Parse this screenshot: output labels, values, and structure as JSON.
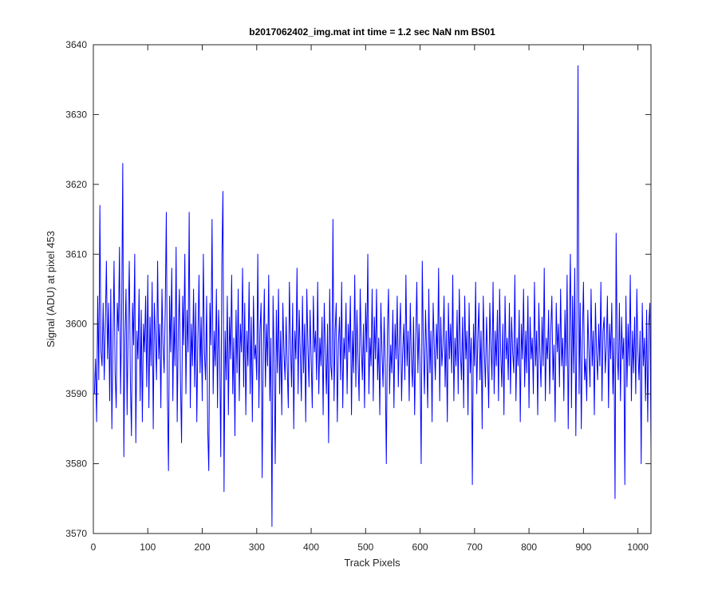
{
  "chart_data": {
    "type": "line",
    "title": "b2017062402_img.mat int time = 1.2 sec  NaN nm BS01",
    "x_label": "Track Pixels",
    "y_label": "Signal (ADU) at pixel 453",
    "color": "#0000ff",
    "xlim": [
      0,
      1024
    ],
    "ylim": [
      3570,
      3640
    ],
    "xticks": [
      0,
      100,
      200,
      300,
      400,
      500,
      600,
      700,
      800,
      900,
      1000
    ],
    "yticks": [
      3570,
      3580,
      3590,
      3600,
      3610,
      3620,
      3630,
      3640
    ],
    "grid": false,
    "x": [
      2,
      4,
      6,
      8,
      10,
      12,
      14,
      16,
      18,
      20,
      22,
      24,
      26,
      28,
      30,
      32,
      34,
      36,
      38,
      40,
      42,
      44,
      46,
      48,
      50,
      52,
      54,
      56,
      58,
      60,
      62,
      64,
      66,
      68,
      70,
      72,
      74,
      76,
      78,
      80,
      82,
      84,
      86,
      88,
      90,
      92,
      94,
      96,
      98,
      100,
      102,
      104,
      106,
      108,
      110,
      112,
      114,
      116,
      118,
      120,
      122,
      124,
      126,
      128,
      130,
      132,
      134,
      136,
      138,
      140,
      142,
      144,
      146,
      148,
      150,
      152,
      154,
      156,
      158,
      160,
      162,
      164,
      166,
      168,
      170,
      172,
      174,
      176,
      178,
      180,
      182,
      184,
      186,
      188,
      190,
      192,
      194,
      196,
      198,
      200,
      202,
      204,
      206,
      208,
      210,
      212,
      214,
      216,
      218,
      220,
      222,
      224,
      226,
      228,
      230,
      232,
      234,
      236,
      238,
      240,
      242,
      244,
      246,
      248,
      250,
      252,
      254,
      256,
      258,
      260,
      262,
      264,
      266,
      268,
      270,
      272,
      274,
      276,
      278,
      280,
      282,
      284,
      286,
      288,
      290,
      292,
      294,
      296,
      298,
      300,
      302,
      304,
      306,
      308,
      310,
      312,
      314,
      316,
      318,
      320,
      322,
      324,
      326,
      328,
      330,
      332,
      334,
      336,
      338,
      340,
      342,
      344,
      346,
      348,
      350,
      352,
      354,
      356,
      358,
      360,
      362,
      364,
      366,
      368,
      370,
      372,
      374,
      376,
      378,
      380,
      382,
      384,
      386,
      388,
      390,
      392,
      394,
      396,
      398,
      400,
      402,
      404,
      406,
      408,
      410,
      412,
      414,
      416,
      418,
      420,
      422,
      424,
      426,
      428,
      430,
      432,
      434,
      436,
      438,
      440,
      442,
      444,
      446,
      448,
      450,
      452,
      454,
      456,
      458,
      460,
      462,
      464,
      466,
      468,
      470,
      472,
      474,
      476,
      478,
      480,
      482,
      484,
      486,
      488,
      490,
      492,
      494,
      496,
      498,
      500,
      502,
      504,
      506,
      508,
      510,
      512,
      514,
      516,
      518,
      520,
      522,
      524,
      526,
      528,
      530,
      532,
      534,
      536,
      538,
      540,
      542,
      544,
      546,
      548,
      550,
      552,
      554,
      556,
      558,
      560,
      562,
      564,
      566,
      568,
      570,
      572,
      574,
      576,
      578,
      580,
      582,
      584,
      586,
      588,
      590,
      592,
      594,
      596,
      598,
      600,
      602,
      604,
      606,
      608,
      610,
      612,
      614,
      616,
      618,
      620,
      622,
      624,
      626,
      628,
      630,
      632,
      634,
      636,
      638,
      640,
      642,
      644,
      646,
      648,
      650,
      652,
      654,
      656,
      658,
      660,
      662,
      664,
      666,
      668,
      670,
      672,
      674,
      676,
      678,
      680,
      682,
      684,
      686,
      688,
      690,
      692,
      694,
      696,
      698,
      700,
      702,
      704,
      706,
      708,
      710,
      712,
      714,
      716,
      718,
      720,
      722,
      724,
      726,
      728,
      730,
      732,
      734,
      736,
      738,
      740,
      742,
      744,
      746,
      748,
      750,
      752,
      754,
      756,
      758,
      760,
      762,
      764,
      766,
      768,
      770,
      772,
      774,
      776,
      778,
      780,
      782,
      784,
      786,
      788,
      790,
      792,
      794,
      796,
      798,
      800,
      802,
      804,
      806,
      808,
      810,
      812,
      814,
      816,
      818,
      820,
      822,
      824,
      826,
      828,
      830,
      832,
      834,
      836,
      838,
      840,
      842,
      844,
      846,
      848,
      850,
      852,
      854,
      856,
      858,
      860,
      862,
      864,
      866,
      868,
      870,
      872,
      874,
      876,
      878,
      880,
      882,
      884,
      886,
      888,
      890,
      892,
      894,
      896,
      898,
      900,
      902,
      904,
      906,
      908,
      910,
      912,
      914,
      916,
      918,
      920,
      922,
      924,
      926,
      928,
      930,
      932,
      934,
      936,
      938,
      940,
      942,
      944,
      946,
      948,
      950,
      952,
      954,
      956,
      958,
      960,
      962,
      964,
      966,
      968,
      970,
      972,
      974,
      976,
      978,
      980,
      982,
      984,
      986,
      988,
      990,
      992,
      994,
      996,
      998,
      1000,
      1002,
      1004,
      1006,
      1008,
      1010,
      1012,
      1014,
      1016,
      1018,
      1020,
      1022,
      1024
    ],
    "values": [
      3590,
      3595,
      3586,
      3604,
      3592,
      3617,
      3596,
      3594,
      3603,
      3592,
      3600,
      3609,
      3595,
      3603,
      3589,
      3605,
      3585,
      3597,
      3609,
      3593,
      3588,
      3603,
      3599,
      3611,
      3590,
      3601,
      3623,
      3581,
      3598,
      3605,
      3587,
      3600,
      3609,
      3592,
      3584,
      3603,
      3597,
      3610,
      3583,
      3599,
      3595,
      3605,
      3589,
      3602,
      3586,
      3600,
      3596,
      3604,
      3591,
      3607,
      3588,
      3601,
      3594,
      3606,
      3585,
      3603,
      3598,
      3592,
      3609,
      3595,
      3600,
      3588,
      3605,
      3597,
      3593,
      3602,
      3616,
      3590,
      3579,
      3604,
      3596,
      3608,
      3589,
      3601,
      3594,
      3611,
      3586,
      3599,
      3605,
      3592,
      3583,
      3604,
      3597,
      3610,
      3590,
      3602,
      3596,
      3616,
      3588,
      3600,
      3594,
      3605,
      3591,
      3603,
      3586,
      3598,
      3607,
      3593,
      3601,
      3589,
      3610,
      3596,
      3592,
      3604,
      3585,
      3579,
      3603,
      3597,
      3615,
      3590,
      3599,
      3594,
      3605,
      3588,
      3602,
      3596,
      3581,
      3609,
      3619,
      3576,
      3599,
      3592,
      3604,
      3587,
      3601,
      3595,
      3607,
      3590,
      3598,
      3584,
      3602,
      3593,
      3605,
      3589,
      3600,
      3596,
      3608,
      3591,
      3603,
      3587,
      3599,
      3594,
      3606,
      3590,
      3601,
      3586,
      3604,
      3595,
      3597,
      3592,
      3610,
      3588,
      3599,
      3603,
      3578,
      3596,
      3605,
      3591,
      3600,
      3594,
      3607,
      3589,
      3598,
      3571,
      3604,
      3595,
      3580,
      3602,
      3593,
      3605,
      3590,
      3599,
      3587,
      3603,
      3596,
      3592,
      3601,
      3594,
      3588,
      3606,
      3597,
      3591,
      3603,
      3585,
      3599,
      3595,
      3608,
      3590,
      3602,
      3596,
      3589,
      3604,
      3593,
      3600,
      3586,
      3605,
      3597,
      3591,
      3602,
      3595,
      3588,
      3604,
      3596,
      3599,
      3592,
      3606,
      3590,
      3598,
      3594,
      3601,
      3587,
      3603,
      3596,
      3590,
      3600,
      3583,
      3605,
      3594,
      3592,
      3615,
      3589,
      3599,
      3603,
      3586,
      3597,
      3601,
      3592,
      3606,
      3588,
      3598,
      3595,
      3603,
      3590,
      3600,
      3596,
      3604,
      3587,
      3599,
      3593,
      3607,
      3591,
      3602,
      3595,
      3589,
      3605,
      3597,
      3592,
      3600,
      3588,
      3603,
      3596,
      3610,
      3590,
      3598,
      3594,
      3605,
      3589,
      3601,
      3595,
      3605,
      3592,
      3598,
      3587,
      3603,
      3596,
      3591,
      3601,
      3594,
      3580,
      3599,
      3605,
      3590,
      3597,
      3593,
      3602,
      3588,
      3600,
      3595,
      3604,
      3591,
      3598,
      3603,
      3589,
      3596,
      3600,
      3592,
      3607,
      3594,
      3599,
      3589,
      3603,
      3595,
      3591,
      3601,
      3587,
      3598,
      3606,
      3593,
      3600,
      3594,
      3580,
      3609,
      3597,
      3590,
      3602,
      3596,
      3588,
      3605,
      3593,
      3599,
      3586,
      3603,
      3597,
      3592,
      3600,
      3595,
      3608,
      3589,
      3601,
      3594,
      3597,
      3604,
      3591,
      3599,
      3586,
      3603,
      3595,
      3600,
      3593,
      3607,
      3589,
      3598,
      3594,
      3602,
      3590,
      3605,
      3596,
      3592,
      3601,
      3588,
      3604,
      3595,
      3599,
      3587,
      3603,
      3593,
      3598,
      3577,
      3600,
      3594,
      3606,
      3590,
      3598,
      3603,
      3592,
      3599,
      3585,
      3604,
      3596,
      3591,
      3601,
      3595,
      3588,
      3603,
      3597,
      3592,
      3606,
      3590,
      3599,
      3594,
      3602,
      3589,
      3605,
      3596,
      3591,
      3600,
      3587,
      3604,
      3595,
      3598,
      3592,
      3603,
      3590,
      3601,
      3596,
      3593,
      3607,
      3589,
      3598,
      3594,
      3602,
      3586,
      3600,
      3595,
      3605,
      3591,
      3599,
      3593,
      3604,
      3588,
      3601,
      3595,
      3598,
      3590,
      3606,
      3594,
      3599,
      3587,
      3603,
      3596,
      3591,
      3601,
      3594,
      3608,
      3589,
      3598,
      3595,
      3602,
      3590,
      3599,
      3604,
      3592,
      3597,
      3586,
      3603,
      3596,
      3600,
      3591,
      3605,
      3594,
      3598,
      3589,
      3602,
      3594,
      3607,
      3585,
      3599,
      3610,
      3588,
      3604,
      3593,
      3608,
      3584,
      3600,
      3637,
      3590,
      3603,
      3585,
      3598,
      3606,
      3592,
      3595,
      3589,
      3602,
      3596,
      3591,
      3605,
      3594,
      3599,
      3587,
      3603,
      3596,
      3592,
      3600,
      3594,
      3606,
      3589,
      3599,
      3601,
      3593,
      3597,
      3604,
      3588,
      3600,
      3595,
      3603,
      3590,
      3598,
      3575,
      3613,
      3596,
      3592,
      3603,
      3589,
      3601,
      3595,
      3598,
      3577,
      3604,
      3591,
      3600,
      3594,
      3607,
      3589,
      3599,
      3593,
      3601,
      3590,
      3605,
      3596,
      3592,
      3599,
      3580,
      3603,
      3594,
      3598,
      3589,
      3602,
      3586,
      3600,
      3603,
      3582
    ]
  }
}
